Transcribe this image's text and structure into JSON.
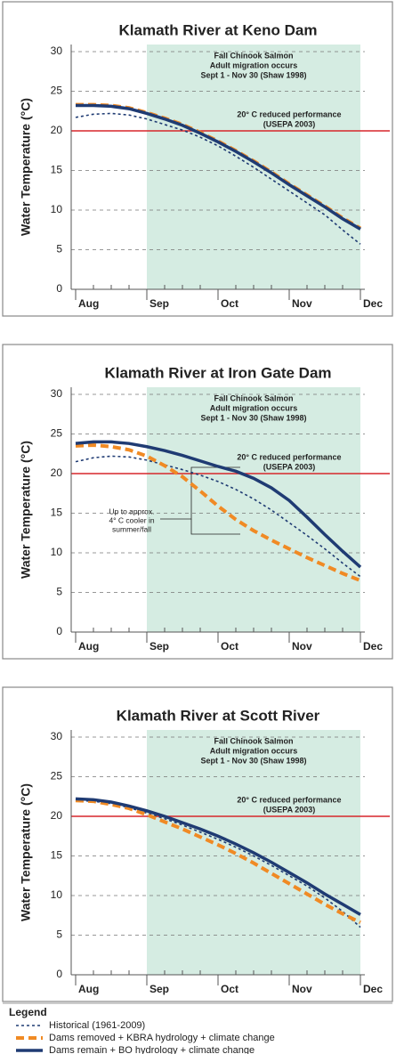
{
  "chart_data": [
    {
      "type": "line",
      "title": "Klamath River at Keno Dam",
      "y_label": "Water Temperature (°C)",
      "categories": [
        "Aug",
        null,
        null,
        null,
        "Sep",
        null,
        null,
        null,
        "Oct",
        null,
        null,
        null,
        "Nov",
        null,
        null,
        null,
        "Dec"
      ],
      "ylim": [
        0,
        30
      ],
      "yticks": [
        0,
        5,
        10,
        15,
        20,
        25,
        30
      ],
      "grid": true,
      "shade": {
        "from": "Sep",
        "to": "Dec",
        "color": "#d5ece2"
      },
      "shade_label": [
        "Fall Chinook Salmon",
        "Adult migration occurs",
        "Sept 1 - Nov 30 (Shaw 1998)"
      ],
      "threshold": 20,
      "threshold_color": "#d7262b",
      "threshold_label": [
        "20° C reduced performance",
        "(USEPA 2003)"
      ],
      "series": [
        {
          "name": "Historical (1961-2009)",
          "color": "#1f3b73",
          "style": "dotted",
          "values": [
            21.7,
            22.1,
            22.2,
            22.0,
            21.5,
            20.8,
            20.1,
            19.2,
            18.1,
            16.8,
            15.4,
            13.9,
            12.4,
            10.9,
            9.4,
            7.5,
            5.7
          ]
        },
        {
          "name": "Dams removed + KBRA hydrology + climate change",
          "color": "#f08a24",
          "style": "dashed",
          "values": [
            23.3,
            23.3,
            23.2,
            22.9,
            22.3,
            21.6,
            20.8,
            19.8,
            18.7,
            17.5,
            16.2,
            14.8,
            13.3,
            11.9,
            10.5,
            9.0,
            7.7
          ]
        },
        {
          "name": "Dams remain + BO hydrology + climate change",
          "color": "#1f3b73",
          "style": "solid",
          "values": [
            23.2,
            23.2,
            23.1,
            22.8,
            22.2,
            21.5,
            20.7,
            19.7,
            18.6,
            17.4,
            16.1,
            14.7,
            13.2,
            11.8,
            10.4,
            8.9,
            7.6
          ]
        }
      ]
    },
    {
      "type": "line",
      "title": "Klamath River at Iron Gate Dam",
      "y_label": "Water Temperature (°C)",
      "categories": [
        "Aug",
        null,
        null,
        null,
        "Sep",
        null,
        null,
        null,
        "Oct",
        null,
        null,
        null,
        "Nov",
        null,
        null,
        null,
        "Dec"
      ],
      "ylim": [
        0,
        30
      ],
      "yticks": [
        0,
        5,
        10,
        15,
        20,
        25,
        30
      ],
      "grid": true,
      "shade": {
        "from": "Sep",
        "to": "Dec",
        "color": "#d5ece2"
      },
      "shade_label": [
        "Fall Chinook Salmon",
        "Adult migration occurs",
        "Sept 1 - Nov 30 (Shaw 1998)"
      ],
      "threshold": 20,
      "threshold_color": "#d7262b",
      "threshold_label": [
        "20° C reduced performance",
        "(USEPA 2003)"
      ],
      "note": [
        "Up to approx.",
        "4° C cooler in",
        "summer/fall"
      ],
      "series": [
        {
          "name": "Historical (1961-2009)",
          "color": "#1f3b73",
          "style": "dotted",
          "values": [
            21.5,
            22.0,
            22.2,
            22.1,
            21.7,
            21.1,
            20.5,
            19.8,
            19.0,
            18.0,
            16.8,
            15.4,
            13.8,
            12.2,
            10.5,
            8.7,
            7.0
          ]
        },
        {
          "name": "Dams removed + KBRA hydrology + climate change",
          "color": "#f08a24",
          "style": "dashed",
          "values": [
            23.5,
            23.6,
            23.4,
            23.0,
            22.2,
            21.0,
            19.6,
            17.8,
            15.9,
            14.2,
            12.8,
            11.6,
            10.5,
            9.4,
            8.4,
            7.4,
            6.5
          ]
        },
        {
          "name": "Dams remain + BO hydrology + climate change",
          "color": "#1f3b73",
          "style": "solid",
          "values": [
            23.8,
            24.0,
            24.0,
            23.8,
            23.4,
            22.9,
            22.3,
            21.6,
            20.9,
            20.3,
            19.4,
            18.2,
            16.6,
            14.5,
            12.3,
            10.2,
            8.2
          ]
        }
      ]
    },
    {
      "type": "line",
      "title": "Klamath River at Scott River",
      "y_label": "Water Temperature (°C)",
      "categories": [
        "Aug",
        null,
        null,
        null,
        "Sep",
        null,
        null,
        null,
        "Oct",
        null,
        null,
        null,
        "Nov",
        null,
        null,
        null,
        "Dec"
      ],
      "ylim": [
        0,
        30
      ],
      "yticks": [
        0,
        5,
        10,
        15,
        20,
        25,
        30
      ],
      "grid": true,
      "shade": {
        "from": "Sep",
        "to": "Dec",
        "color": "#d5ece2"
      },
      "shade_label": [
        "Fall Chinook Salmon",
        "Adult migration occurs",
        "Sept 1 - Nov 30 (Shaw 1998)"
      ],
      "threshold": 20,
      "threshold_color": "#d7262b",
      "threshold_label": [
        "20° C reduced performance",
        "(USEPA 2003)"
      ],
      "series": [
        {
          "name": "Historical (1961-2009)",
          "color": "#1f3b73",
          "style": "dotted",
          "values": [
            22.0,
            21.9,
            21.6,
            21.1,
            20.4,
            19.7,
            18.9,
            18.0,
            17.1,
            16.1,
            15.0,
            13.8,
            12.5,
            11.2,
            9.7,
            8.0,
            6.0
          ]
        },
        {
          "name": "Dams removed + KBRA hydrology + climate change",
          "color": "#f08a24",
          "style": "dashed",
          "values": [
            22.0,
            21.9,
            21.5,
            21.0,
            20.2,
            19.3,
            18.4,
            17.4,
            16.4,
            15.3,
            14.1,
            12.8,
            11.5,
            10.2,
            8.9,
            7.7,
            6.6
          ]
        },
        {
          "name": "Dams remain + BO hydrology + climate change",
          "color": "#1f3b73",
          "style": "solid",
          "values": [
            22.2,
            22.1,
            21.8,
            21.3,
            20.7,
            20.0,
            19.2,
            18.4,
            17.5,
            16.5,
            15.4,
            14.2,
            12.9,
            11.6,
            10.2,
            8.9,
            7.6
          ]
        }
      ]
    }
  ],
  "legend": {
    "title": "Legend"
  }
}
